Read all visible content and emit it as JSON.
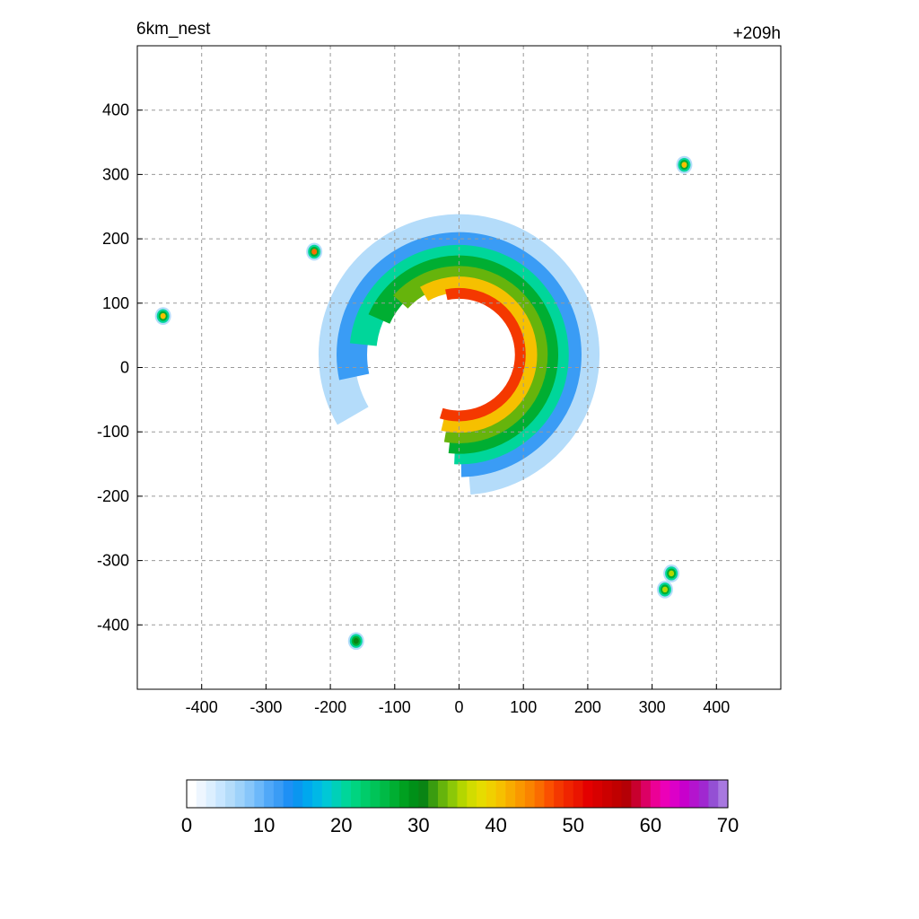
{
  "header": {
    "title_left": "6km_nest",
    "title_right": "+209h"
  },
  "chart_data": {
    "type": "heatmap",
    "title": "6km_nest",
    "subtitle": "+209h",
    "xlabel": "",
    "ylabel": "",
    "xlim": [
      -500,
      500
    ],
    "ylim": [
      -500,
      500
    ],
    "x_ticks": [
      -400,
      -300,
      -200,
      -100,
      0,
      100,
      200,
      300,
      400
    ],
    "y_ticks": [
      400,
      300,
      200,
      100,
      0,
      -100,
      -200,
      -300,
      -400
    ],
    "grid": true,
    "colorbar": {
      "min": 0,
      "max": 70,
      "ticks": [
        0,
        10,
        20,
        30,
        40,
        50,
        60,
        70
      ],
      "colors": [
        "#ffffff",
        "#eef6ff",
        "#dcefff",
        "#c8e6ff",
        "#b4dcfa",
        "#9ed2fa",
        "#87c6fa",
        "#6cb8fa",
        "#50a8f8",
        "#3a9cf5",
        "#1e90f5",
        "#0a96f0",
        "#00a8ee",
        "#00b8e6",
        "#00c8d6",
        "#00d0b8",
        "#00d69a",
        "#00d480",
        "#00cc6a",
        "#00c458",
        "#00ba46",
        "#00ae32",
        "#00a020",
        "#009018",
        "#0a8414",
        "#3a9c10",
        "#66b40c",
        "#8cc808",
        "#b4d600",
        "#d2dc00",
        "#e6dc00",
        "#f0d000",
        "#f6c000",
        "#f8ac00",
        "#fa9800",
        "#fa8400",
        "#fa6c00",
        "#fa5000",
        "#f43800",
        "#f02400",
        "#ea1400",
        "#e40000",
        "#d80000",
        "#cc0000",
        "#c00000",
        "#b40006",
        "#c8002e",
        "#dc0064",
        "#ec0096",
        "#ec00b8",
        "#dc00c8",
        "#c800cc",
        "#b414ce",
        "#a028d0",
        "#9450d4",
        "#a878e0"
      ]
    },
    "contour_features": [
      {
        "shape": "spiral-band",
        "x": 0,
        "y": 20,
        "r": 170,
        "intensity": "high",
        "note_values": [
          30,
          40,
          50
        ]
      },
      {
        "shape": "eye",
        "x": 30,
        "y": 20,
        "r": 55,
        "intensity": "clear"
      },
      {
        "shape": "cell",
        "x": -460,
        "y": 80,
        "value": 40
      },
      {
        "shape": "cell",
        "x": -225,
        "y": 180,
        "value": 45
      },
      {
        "shape": "cell",
        "x": 350,
        "y": 315,
        "value": 40
      },
      {
        "shape": "cell",
        "x": 330,
        "y": -320,
        "value": 35
      },
      {
        "shape": "cell",
        "x": 320,
        "y": -345,
        "value": 35
      },
      {
        "shape": "cell",
        "x": -160,
        "y": -425,
        "value": 30
      }
    ]
  }
}
